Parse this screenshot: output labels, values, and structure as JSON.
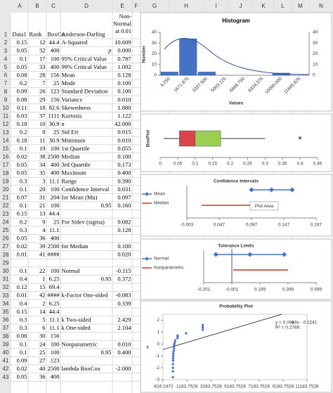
{
  "sheet": {
    "columns": [
      "A",
      "B",
      "C",
      "D",
      "E",
      "F",
      "G",
      "H",
      "I",
      "J",
      "K",
      "L",
      "M",
      "N"
    ],
    "rows": [
      {
        "n": 1,
        "A": "Data1",
        "B": "Rank",
        "C": "BoxCo",
        "D": "Anderson-Darling",
        "E": [
          "Non-",
          "Normal",
          "at 0.01"
        ]
      },
      {
        "n": 2,
        "A": "0.15",
        "B": "12",
        "C": "44.4",
        "D": "A-Squared",
        "E": "10.609"
      },
      {
        "n": 3,
        "A": "0.05",
        "B": "32",
        "C": "400",
        "D": "p",
        "E": "0.000"
      },
      {
        "n": 4,
        "A": "0.1",
        "B": "17",
        "C": "100",
        "D": "95% Critical Value",
        "E": "0.787"
      },
      {
        "n": 5,
        "A": "0.05",
        "B": "33",
        "C": "400",
        "D": "99% Critical Value",
        "E": "1.092"
      },
      {
        "n": 6,
        "A": "0.08",
        "B": "28",
        "C": "156",
        "D": "Mean",
        "E": "0.128"
      },
      {
        "n": 7,
        "A": "0.2",
        "B": "7",
        "C": "25",
        "D": "Mode",
        "E": "0.100"
      },
      {
        "n": 8,
        "A": "0.09",
        "B": "26",
        "C": "123",
        "D": "Standard Deviation",
        "E": "0.100"
      },
      {
        "n": 9,
        "A": "0.08",
        "B": "29",
        "C": "156",
        "D": "Variance",
        "E": "0.010"
      },
      {
        "n": 10,
        "A": "0.11",
        "B": "18",
        "C": "82.6",
        "D": "Skewedness",
        "E": "1.880"
      },
      {
        "n": 11,
        "A": "0.03",
        "B": "37",
        "C": "1111",
        "D": "Kurtosis",
        "E": "1.122"
      },
      {
        "n": 12,
        "A": "0.18",
        "B": "10",
        "C": "30.9",
        "D": "n",
        "E": "42.000"
      },
      {
        "n": 13,
        "A": "0.2",
        "B": "8",
        "C": "25",
        "D": "Std Err",
        "E": "0.015"
      },
      {
        "n": 14,
        "A": "0.18",
        "B": "11",
        "C": "30.9",
        "D": "Minimum",
        "E": "0.010"
      },
      {
        "n": 15,
        "A": "0.1",
        "B": "19",
        "C": "100",
        "D": "1st Quartile",
        "E": "0.055"
      },
      {
        "n": 16,
        "A": "0.02",
        "B": "38",
        "C": "2500",
        "D": "Median",
        "E": "0.100"
      },
      {
        "n": 17,
        "A": "0.05",
        "B": "34",
        "C": "400",
        "D": "3rd Quartile",
        "E": "0.173"
      },
      {
        "n": 18,
        "A": "0.05",
        "B": "35",
        "C": "400",
        "D": "Maximum",
        "E": "0.400"
      },
      {
        "n": 19,
        "A": "0.3",
        "B": "3",
        "C": "11.1",
        "D": "Range",
        "E": "0.390"
      },
      {
        "n": 20,
        "A": "0.1",
        "B": "20",
        "C": "100",
        "D": "Confidence Interval",
        "E": "0.031"
      },
      {
        "n": 21,
        "A": "0.07",
        "B": "31",
        "C": "204",
        "D": "for Mean (Mu)",
        "E": "0.097"
      },
      {
        "n": 22,
        "A": "0.1",
        "B": "21",
        "C": "100",
        "D": "0.95",
        "E": "0.160"
      },
      {
        "n": 23,
        "A": "0.15",
        "B": "13",
        "C": "44.4"
      },
      {
        "n": 24,
        "A": "0.2",
        "B": "9",
        "C": "25",
        "D": "For Stdev (sigma)",
        "E": "0.082"
      },
      {
        "n": 25,
        "A": "0.3",
        "B": "4",
        "C": "11.1",
        "E": "0.128"
      },
      {
        "n": 26,
        "A": "0.05",
        "B": "36",
        "C": "400"
      },
      {
        "n": 27,
        "A": "0.02",
        "B": "39",
        "C": "2500",
        "D": "for Median",
        "E": "0.100"
      },
      {
        "n": 28,
        "A": "0.01",
        "B": "41",
        "C": "####",
        "E": "0.020"
      },
      {
        "n": 29
      },
      {
        "n": 30,
        "A": "0.1",
        "B": "22",
        "C": "100",
        "D": "Normal",
        "E": "-0.115"
      },
      {
        "n": 31,
        "A": "0.4",
        "B": "1",
        "C": "6.25",
        "D": "0.95",
        "E": "0.372"
      },
      {
        "n": 32,
        "A": "0.12",
        "B": "15",
        "C": "69.4"
      },
      {
        "n": 33,
        "A": "0.01",
        "B": "42",
        "C": "####",
        "D": "k-Factor One-sided",
        "E": "-0.083"
      },
      {
        "n": 34,
        "A": "0.4",
        "B": "2",
        "C": "6.25",
        "E": "0.339"
      },
      {
        "n": 35,
        "A": "0.15",
        "B": "14",
        "C": "44.4"
      },
      {
        "n": 36,
        "A": "0.3",
        "B": "5",
        "C": "11.1",
        "D": "k Two-sided",
        "E": "2.429"
      },
      {
        "n": 37,
        "A": "0.3",
        "B": "6",
        "C": "11.1",
        "D": "k One-sided",
        "E": "2.104"
      },
      {
        "n": 38,
        "A": "0.08",
        "B": "30",
        "C": "156"
      },
      {
        "n": 39,
        "A": "0.1",
        "B": "24",
        "C": "100",
        "D": "Nonparametric",
        "E": "0.010"
      },
      {
        "n": 40,
        "A": "0.1",
        "B": "25",
        "C": "100",
        "D": "0.95",
        "E": "0.400"
      },
      {
        "n": 41,
        "A": "0.09",
        "B": "27",
        "C": "123"
      },
      {
        "n": 42,
        "A": "0.02",
        "B": "40",
        "C": "2500",
        "D": "lambda BoxCox",
        "E": "-2.000"
      },
      {
        "n": 43,
        "A": "0.05",
        "B": "36",
        "C": "400"
      }
    ]
  },
  "chart_data": [
    {
      "type": "bar",
      "title": "Histogram",
      "y_label": "Number",
      "x_label": "Values",
      "color": "#4472c4",
      "categories": [
        "6.250",
        "1671.875",
        "3337.500",
        "5003.125",
        "6668.750",
        "8334.375",
        "10000.000",
        "11665.625"
      ],
      "values": [
        3,
        34,
        3,
        0,
        0,
        0,
        2,
        0
      ],
      "ylim": [
        0,
        40
      ],
      "yticks": [
        0,
        10,
        20,
        30,
        40
      ]
    },
    {
      "type": "boxplot",
      "y_label": "BoxPlot",
      "low": 0.01,
      "q1": 0.055,
      "median": 0.1,
      "q3": 0.173,
      "high": 0.3,
      "outlier": 0.4,
      "xlim": [
        0,
        0.45
      ],
      "xticks": [
        0,
        0.05,
        0.1,
        0.15,
        0.2,
        0.25,
        0.3,
        0.35,
        0.4,
        0.45
      ]
    },
    {
      "type": "interval",
      "title": "Confidence Intervals",
      "tooltip": "Plot Area",
      "xlim": [
        -0.003,
        0.197
      ],
      "xticks": [
        -0.003,
        0.047,
        0.097,
        0.147,
        0.197
      ],
      "series": [
        {
          "name": "Mean",
          "color": "#4472c4",
          "values": [
            0.097,
            0.128,
            0.16
          ]
        },
        {
          "name": "Median",
          "color": "#c0392b",
          "values": [
            0.02,
            0.1
          ]
        }
      ]
    },
    {
      "type": "interval",
      "title": "Tolerance Limits",
      "reference": -0.001,
      "xlim": [
        -0.201,
        0.599
      ],
      "xticks": [
        -0.201,
        -0.001,
        0.199,
        0.399,
        0.599
      ],
      "series": [
        {
          "name": "Normal",
          "color": "#4472c4",
          "values": [
            -0.115,
            0.128,
            0.372
          ]
        },
        {
          "name": "Nonparametric",
          "color": "#c0392b",
          "values": [
            0.01,
            0.4
          ]
        }
      ]
    },
    {
      "type": "scatter",
      "title": "Probability Plot",
      "y_label": "z",
      "color": "#4472c4",
      "annotation": [
        "y = 0.0003x - 0.2241",
        "R² = 0.2788"
      ],
      "trend": {
        "slope": 0.0003,
        "intercept": -0.2241
      },
      "x": [
        6.25,
        6.25,
        11.1,
        11.1,
        25,
        25,
        30.9,
        44.4,
        69.4,
        100,
        100,
        123,
        156,
        204,
        400,
        400,
        400,
        1111,
        2500,
        2500,
        2500,
        10000
      ],
      "values": [
        -2.8,
        -2.3,
        -2.0,
        -1.7,
        -1.4,
        -1.2,
        -1.0,
        -0.8,
        -0.6,
        -0.4,
        -0.2,
        -0.05,
        0.1,
        0.3,
        0.5,
        0.6,
        0.7,
        0.9,
        1.2,
        1.4,
        1.6,
        1.8
      ],
      "xlim": [
        -816.2472,
        11183.7528
      ],
      "xticks": [
        -816.2472,
        1183.7528,
        3183.7528,
        5183.7528,
        7183.7528,
        9183.7528,
        11183.7528
      ],
      "ylim": [
        -3,
        2.5
      ],
      "yticks": [
        -3,
        -2,
        -1,
        0,
        1,
        2
      ]
    }
  ]
}
